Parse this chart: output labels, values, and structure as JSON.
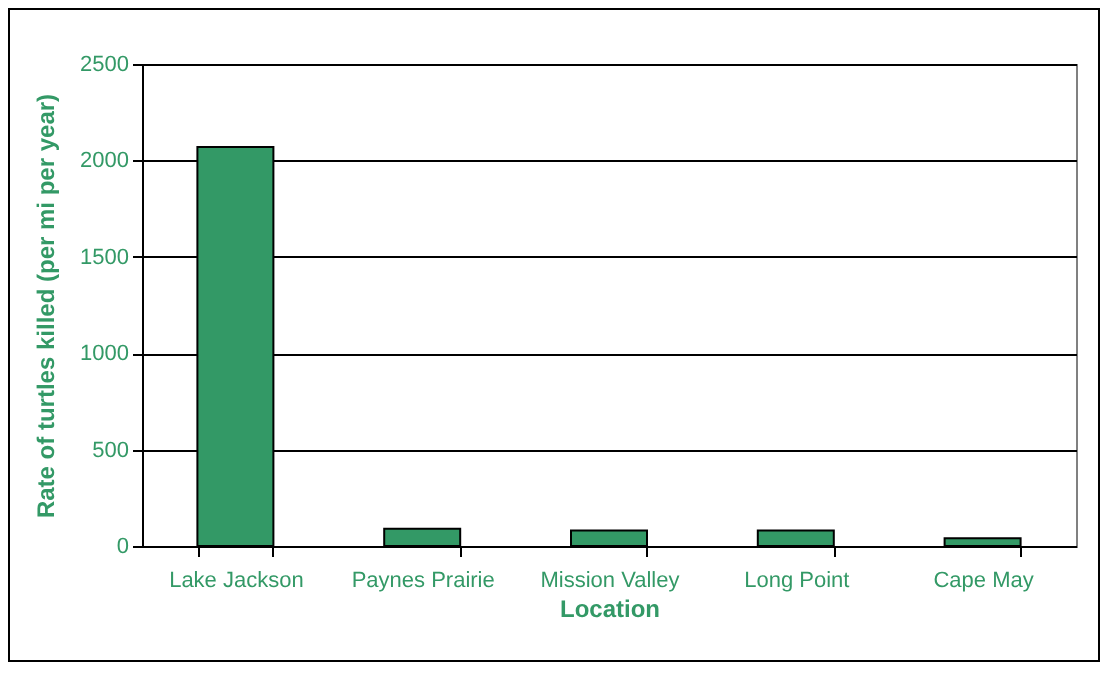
{
  "chart_data": {
    "type": "bar",
    "xlabel": "Location",
    "ylabel": "Rate of turtles killed (per mi per year)",
    "categories": [
      "Lake Jackson",
      "Paynes Prairie",
      "Mission Valley",
      "Long Point",
      "Cape May"
    ],
    "values": [
      2070,
      90,
      80,
      80,
      40
    ],
    "color": "#339966",
    "ylim": [
      0,
      2500
    ],
    "yticks": [
      0,
      500,
      1000,
      1500,
      2000,
      2500
    ],
    "grid": "y"
  }
}
